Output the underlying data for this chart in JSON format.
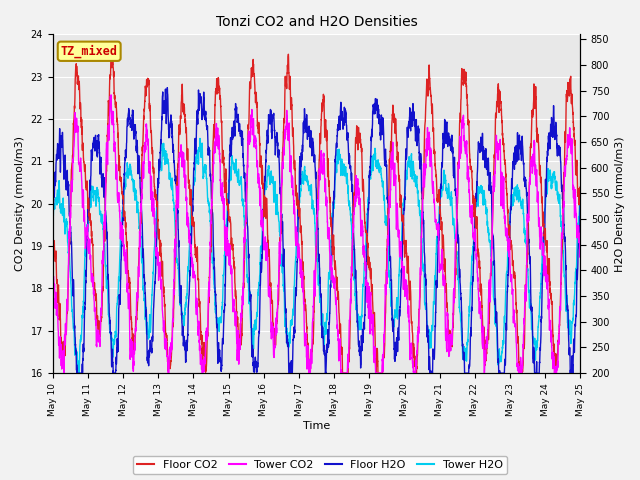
{
  "title": "Tonzi CO2 and H2O Densities",
  "xlabel": "Time",
  "ylabel_left": "CO2 Density (mmol/m3)",
  "ylabel_right": "H2O Density (mmol/m3)",
  "annotation_text": "TZ_mixed",
  "annotation_color": "#cc0000",
  "annotation_bg": "#ffff99",
  "annotation_border": "#aa8800",
  "x_start_day": 10,
  "x_end_day": 25,
  "x_ticks": [
    10,
    11,
    12,
    13,
    14,
    15,
    16,
    17,
    18,
    19,
    20,
    21,
    22,
    23,
    24,
    25
  ],
  "x_tick_labels": [
    "May 10",
    "May 11",
    "May 12",
    "May 13",
    "May 14",
    "May 15",
    "May 16",
    "May 17",
    "May 18",
    "May 19",
    "May 20",
    "May 21",
    "May 22",
    "May 23",
    "May 24",
    "May 25"
  ],
  "ylim_left": [
    16.0,
    24.0
  ],
  "ylim_right": [
    200,
    860
  ],
  "yticks_left": [
    16.0,
    17.0,
    18.0,
    19.0,
    20.0,
    21.0,
    22.0,
    23.0,
    24.0
  ],
  "yticks_right": [
    200,
    250,
    300,
    350,
    400,
    450,
    500,
    550,
    600,
    650,
    700,
    750,
    800,
    850
  ],
  "color_floor_co2": "#dd2222",
  "color_tower_co2": "#ff00ff",
  "color_floor_h2o": "#1111cc",
  "color_tower_h2o": "#00ccee",
  "legend_labels": [
    "Floor CO2",
    "Tower CO2",
    "Floor H2O",
    "Tower H2O"
  ],
  "plot_bg_color": "#e8e8e8",
  "fig_bg_color": "#f2f2f2",
  "grid_color": "#ffffff",
  "linewidth": 1.0,
  "n_points": 3600
}
